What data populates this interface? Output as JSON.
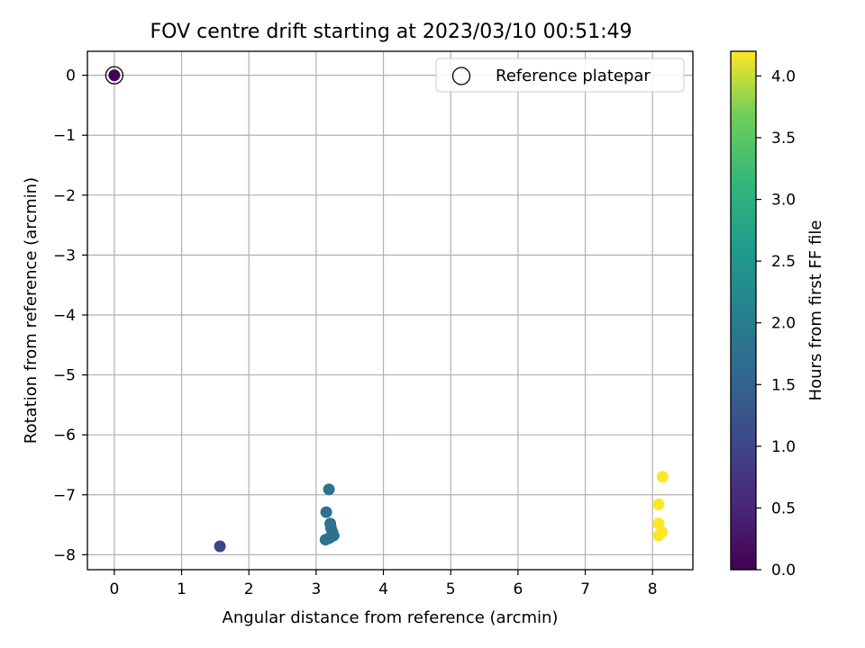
{
  "chart_data": {
    "type": "scatter",
    "title": "FOV centre drift starting at 2023/03/10 00:51:49",
    "xlabel": "Angular distance from reference (arcmin)",
    "ylabel": "Rotation from reference (arcmin)",
    "xlim": [
      -0.4,
      8.6
    ],
    "ylim": [
      -8.25,
      0.4
    ],
    "xticks": [
      0,
      1,
      2,
      3,
      4,
      5,
      6,
      7,
      8
    ],
    "yticks": [
      0,
      -1,
      -2,
      -3,
      -4,
      -5,
      -6,
      -7,
      -8
    ],
    "xtick_labels": [
      "0",
      "1",
      "2",
      "3",
      "4",
      "5",
      "6",
      "7",
      "8"
    ],
    "ytick_labels": [
      "0",
      "−1",
      "−2",
      "−3",
      "−4",
      "−5",
      "−6",
      "−7",
      "−8"
    ],
    "grid": true,
    "legend": {
      "placement": "upper-right",
      "entries": [
        "Reference platepar"
      ]
    },
    "colorbar": {
      "label": "Hours from first FF file",
      "colormap": "viridis",
      "range": [
        0.0,
        4.2
      ],
      "ticks": [
        0.0,
        0.5,
        1.0,
        1.5,
        2.0,
        2.5,
        3.0,
        3.5,
        4.0
      ],
      "tick_labels": [
        "0.0",
        "0.5",
        "1.0",
        "1.5",
        "2.0",
        "2.5",
        "3.0",
        "3.5",
        "4.0"
      ]
    },
    "reference_point": {
      "x": 0.0,
      "y": 0.0
    },
    "points": [
      {
        "x": 0.0,
        "y": 0.0,
        "hours": 0.0
      },
      {
        "x": 1.57,
        "y": -7.86,
        "hours": 1.0
      },
      {
        "x": 3.19,
        "y": -6.91,
        "hours": 1.75
      },
      {
        "x": 3.15,
        "y": -7.29,
        "hours": 1.75
      },
      {
        "x": 3.21,
        "y": -7.48,
        "hours": 1.75
      },
      {
        "x": 3.22,
        "y": -7.55,
        "hours": 1.75
      },
      {
        "x": 3.24,
        "y": -7.62,
        "hours": 1.75
      },
      {
        "x": 3.26,
        "y": -7.68,
        "hours": 1.75
      },
      {
        "x": 3.2,
        "y": -7.72,
        "hours": 1.75
      },
      {
        "x": 3.14,
        "y": -7.75,
        "hours": 1.75
      },
      {
        "x": 8.15,
        "y": -6.7,
        "hours": 4.2
      },
      {
        "x": 8.09,
        "y": -7.16,
        "hours": 4.2
      },
      {
        "x": 8.09,
        "y": -7.48,
        "hours": 4.2
      },
      {
        "x": 8.14,
        "y": -7.62,
        "hours": 4.2
      },
      {
        "x": 8.09,
        "y": -7.68,
        "hours": 4.2
      }
    ]
  }
}
